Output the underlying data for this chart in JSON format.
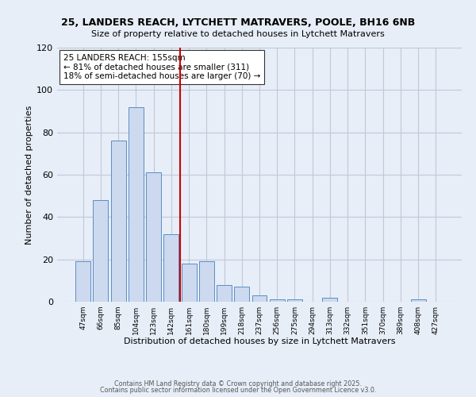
{
  "title_line1": "25, LANDERS REACH, LYTCHETT MATRAVERS, POOLE, BH16 6NB",
  "title_line2": "Size of property relative to detached houses in Lytchett Matravers",
  "xlabel": "Distribution of detached houses by size in Lytchett Matravers",
  "ylabel": "Number of detached properties",
  "bar_labels": [
    "47sqm",
    "66sqm",
    "85sqm",
    "104sqm",
    "123sqm",
    "142sqm",
    "161sqm",
    "180sqm",
    "199sqm",
    "218sqm",
    "237sqm",
    "256sqm",
    "275sqm",
    "294sqm",
    "313sqm",
    "332sqm",
    "351sqm",
    "370sqm",
    "389sqm",
    "408sqm",
    "427sqm"
  ],
  "bar_values": [
    19,
    48,
    76,
    92,
    61,
    32,
    18,
    19,
    8,
    7,
    3,
    1,
    1,
    0,
    2,
    0,
    0,
    0,
    0,
    1,
    0
  ],
  "bar_color": "#ccd9ee",
  "bar_edge_color": "#5b8ec4",
  "vline_color": "#cc0000",
  "ylim": [
    0,
    120
  ],
  "yticks": [
    0,
    20,
    40,
    60,
    80,
    100,
    120
  ],
  "annotation_title": "25 LANDERS REACH: 155sqm",
  "annotation_line1": "← 81% of detached houses are smaller (311)",
  "annotation_line2": "18% of semi-detached houses are larger (70) →",
  "footer_line1": "Contains HM Land Registry data © Crown copyright and database right 2025.",
  "footer_line2": "Contains public sector information licensed under the Open Government Licence v3.0.",
  "background_color": "#e8eef8",
  "plot_bg_color": "#e8eef8",
  "grid_color": "#c0c8d8"
}
